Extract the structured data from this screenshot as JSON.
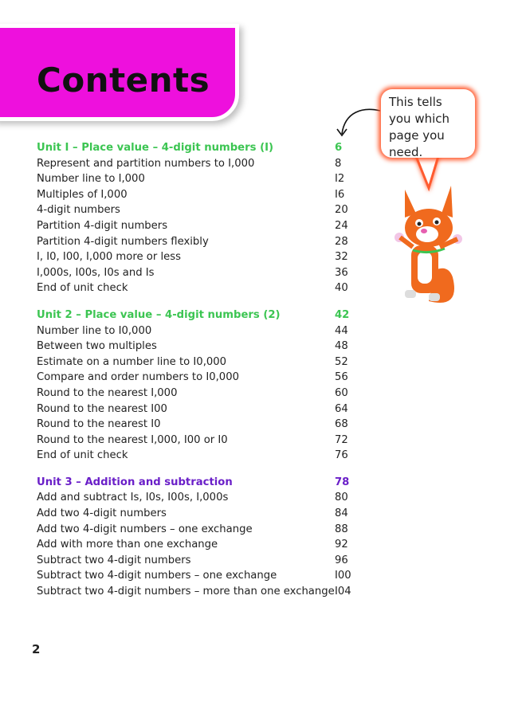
{
  "title": "Contents",
  "colors": {
    "header": "#ee10dd",
    "unit1": "#3cc552",
    "unit2": "#3cc552",
    "unit3": "#6a1fc8",
    "bubble_glow": "#ff5a2e"
  },
  "callout": {
    "text": "This tells you which page you need."
  },
  "units": [
    {
      "title": "Unit I – Place value – 4-digit numbers (I)",
      "page": "6",
      "items": [
        {
          "label": "Represent and partition numbers to I,000",
          "page": "8"
        },
        {
          "label": "Number line to I,000",
          "page": "I2"
        },
        {
          "label": "Multiples of I,000",
          "page": "I6"
        },
        {
          "label": "4-digit numbers",
          "page": "20"
        },
        {
          "label": "Partition 4-digit numbers",
          "page": "24"
        },
        {
          "label": "Partition 4-digit numbers flexibly",
          "page": "28"
        },
        {
          "label": "I, I0, I00, I,000 more or less",
          "page": "32"
        },
        {
          "label": "I,000s, I00s, I0s and Is",
          "page": "36"
        },
        {
          "label": "End of unit check",
          "page": "40"
        }
      ]
    },
    {
      "title": "Unit 2 – Place value – 4-digit numbers (2)",
      "page": "42",
      "items": [
        {
          "label": "Number line to I0,000",
          "page": "44"
        },
        {
          "label": "Between two multiples",
          "page": "48"
        },
        {
          "label": "Estimate on a number line to I0,000",
          "page": "52"
        },
        {
          "label": "Compare and order numbers to I0,000",
          "page": "56"
        },
        {
          "label": "Round to the nearest I,000",
          "page": "60"
        },
        {
          "label": "Round to the nearest I00",
          "page": "64"
        },
        {
          "label": "Round to the nearest I0",
          "page": "68"
        },
        {
          "label": "Round to the nearest I,000, I00 or I0",
          "page": "72"
        },
        {
          "label": "End of unit check",
          "page": "76"
        }
      ]
    },
    {
      "title": "Unit 3 – Addition and subtraction",
      "page": "78",
      "items": [
        {
          "label": "Add and subtract Is, I0s, I00s, I,000s",
          "page": "80"
        },
        {
          "label": "Add two 4-digit numbers",
          "page": "84"
        },
        {
          "label": "Add two 4-digit numbers – one exchange",
          "page": "88"
        },
        {
          "label": "Add with more than one exchange",
          "page": "92"
        },
        {
          "label": "Subtract two 4-digit numbers",
          "page": "96"
        },
        {
          "label": "Subtract two 4-digit numbers – one exchange",
          "page": "I00"
        },
        {
          "label": "Subtract two 4-digit numbers – more than one exchange",
          "page": "I04"
        }
      ]
    }
  ],
  "page_number": "2"
}
